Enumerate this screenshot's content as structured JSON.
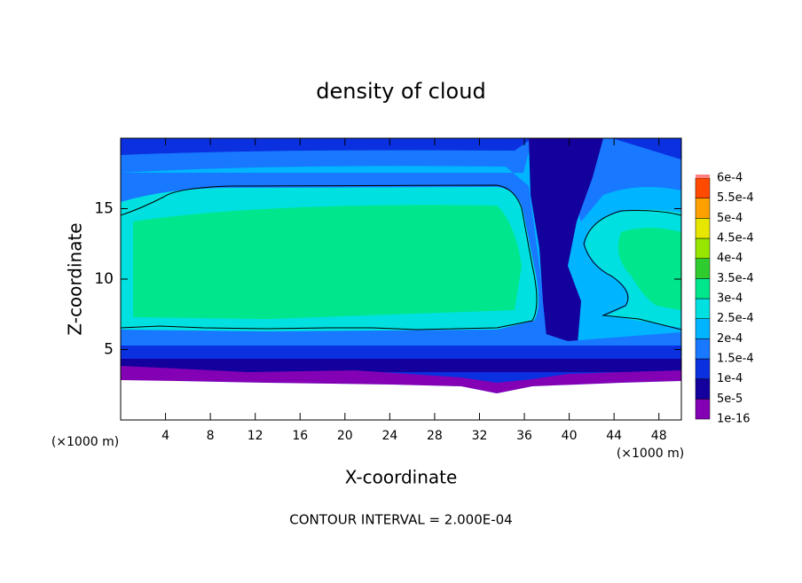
{
  "chart_data": {
    "type": "contour",
    "title": "density of cloud",
    "xlabel": "X-coordinate",
    "ylabel": "Z-coordinate",
    "xunit": "(×1000 m)",
    "yunit": "(×1000 m)",
    "footer": "CONTOUR INTERVAL = 2.000E-04",
    "xlim": [
      0,
      50
    ],
    "xticks": [
      4,
      8,
      12,
      16,
      20,
      24,
      28,
      32,
      36,
      40,
      44,
      48
    ],
    "ylim": [
      0,
      20
    ],
    "yticks": [
      5,
      10,
      15
    ],
    "colorbar": {
      "levels": [
        {
          "value": 1e-16,
          "label": "1e-16"
        },
        {
          "value": 5e-05,
          "label": "5e-5"
        },
        {
          "value": 0.0001,
          "label": "1e-4"
        },
        {
          "value": 0.00015,
          "label": "1.5e-4"
        },
        {
          "value": 0.0002,
          "label": "2e-4"
        },
        {
          "value": 0.00025,
          "label": "2.5e-4"
        },
        {
          "value": 0.0003,
          "label": "3e-4"
        },
        {
          "value": 0.00035,
          "label": "3.5e-4"
        },
        {
          "value": 0.0004,
          "label": "4e-4"
        },
        {
          "value": 0.00045,
          "label": "4.5e-4"
        },
        {
          "value": 0.0005,
          "label": "5e-4"
        },
        {
          "value": 0.00055,
          "label": "5.5e-4"
        },
        {
          "value": 0.0006,
          "label": "6e-4"
        }
      ],
      "colors": [
        "#8400b4",
        "#14009c",
        "#0a30e0",
        "#1878ff",
        "#00b4ff",
        "#00e0e0",
        "#00e68c",
        "#2ecc2e",
        "#96e600",
        "#e6e600",
        "#ffa000",
        "#ff4a00",
        "#ff8080"
      ]
    }
  }
}
